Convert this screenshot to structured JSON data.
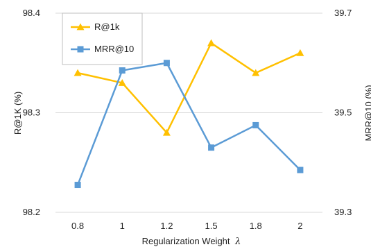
{
  "chart_data": {
    "type": "line",
    "categories": [
      "0.8",
      "1",
      "1.2",
      "1.5",
      "1.8",
      "2"
    ],
    "xlabel": "Regularization Weight",
    "xlabel_symbol": "λ",
    "ylabel_left": "R@1K (%)",
    "ylabel_right": "MRR@10 (%)",
    "ylim_left": [
      98.2,
      98.4
    ],
    "ylim_right": [
      39.3,
      39.7
    ],
    "yticks_left": [
      "98.2",
      "98.3",
      "98.4"
    ],
    "yticks_right": [
      "39.3",
      "39.5",
      "39.7"
    ],
    "grid": true,
    "legend_position": "top-left",
    "series": [
      {
        "name": "R@1k",
        "axis": "left",
        "color": "#FFC000",
        "marker": "triangle",
        "values": [
          98.34,
          98.33,
          98.28,
          98.37,
          98.34,
          98.36
        ]
      },
      {
        "name": "MRR@10",
        "axis": "right",
        "color": "#5B9BD5",
        "marker": "square",
        "values": [
          39.355,
          39.585,
          39.6,
          39.43,
          39.475,
          39.385
        ]
      }
    ]
  }
}
